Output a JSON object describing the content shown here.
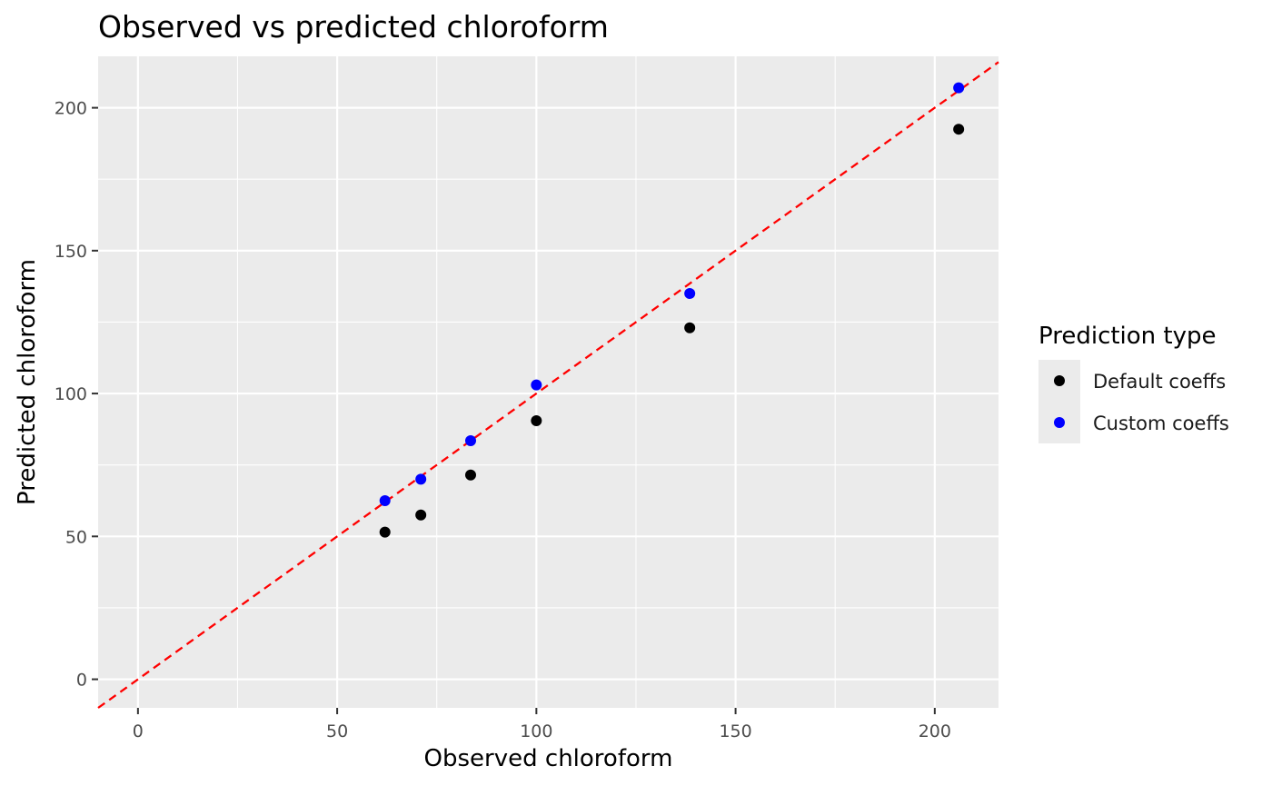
{
  "chart_data": {
    "type": "scatter",
    "title": "Observed vs predicted chloroform",
    "xlabel": "Observed chloroform",
    "ylabel": "Predicted chloroform",
    "xlim": [
      -10,
      216
    ],
    "ylim": [
      -10,
      218
    ],
    "x_ticks": [
      0,
      50,
      100,
      150,
      200
    ],
    "y_ticks": [
      0,
      50,
      100,
      150,
      200
    ],
    "grid": true,
    "panel_background": "#ebebeb",
    "reference_line": {
      "slope": 1,
      "intercept": 0,
      "color": "#ff0000",
      "style": "dashed"
    },
    "legend": {
      "title": "Prediction type",
      "position": "right"
    },
    "series": [
      {
        "name": "Default coeffs",
        "color": "#000000",
        "points": [
          [
            62,
            51.5
          ],
          [
            71,
            57.5
          ],
          [
            83.5,
            71.5
          ],
          [
            100,
            90.5
          ],
          [
            138.5,
            123
          ],
          [
            206,
            192.5
          ]
        ]
      },
      {
        "name": "Custom coeffs",
        "color": "#0000ff",
        "points": [
          [
            62,
            62.5
          ],
          [
            71,
            70
          ],
          [
            83.5,
            83.5
          ],
          [
            100,
            103
          ],
          [
            138.5,
            135
          ],
          [
            206,
            207
          ]
        ]
      }
    ]
  }
}
